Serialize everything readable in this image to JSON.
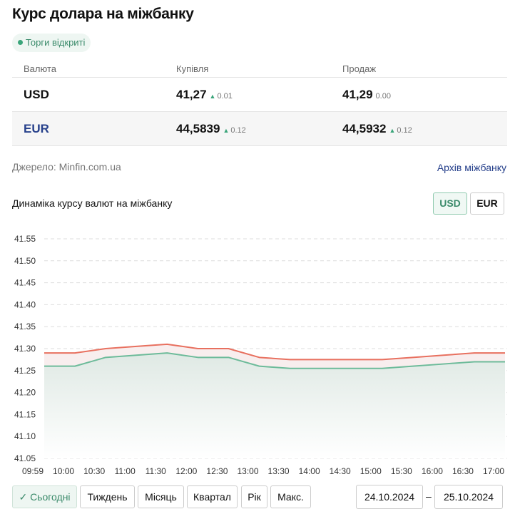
{
  "title": "Курс долара на міжбанку",
  "status_badge": "Торги відкриті",
  "table": {
    "headers": [
      "Валюта",
      "Купівля",
      "Продаж"
    ],
    "rows": [
      {
        "currency": "USD",
        "buy": "41,27",
        "buy_change": "0.01",
        "buy_trend": "up",
        "sell": "41,29",
        "sell_change": "0.00",
        "sell_trend": "none"
      },
      {
        "currency": "EUR",
        "buy": "44,5839",
        "buy_change": "0.12",
        "buy_trend": "up",
        "sell": "44,5932",
        "sell_change": "0.12",
        "sell_trend": "up"
      }
    ]
  },
  "source": "Джерело: Minfin.com.ua",
  "archive_link": "Архів міжбанку",
  "chart_title": "Динаміка курсу валют на міжбанку",
  "currency_toggle": {
    "options": [
      "USD",
      "EUR"
    ],
    "selected": "USD"
  },
  "periods": {
    "options": [
      "Сьогодні",
      "Тиждень",
      "Місяць",
      "Квартал",
      "Рік",
      "Макс."
    ],
    "selected": "Сьогодні",
    "check_icon": "✓"
  },
  "date_from": "24.10.2024",
  "date_sep": "–",
  "date_to": "25.10.2024",
  "colors": {
    "buy": "#6dbb9a",
    "sell": "#e8705f",
    "accent": "#3a8a6a",
    "link": "#26408b"
  },
  "chart_data": {
    "type": "line",
    "categories": [
      "09:59",
      "10:00",
      "10:30",
      "11:00",
      "11:30",
      "12:00",
      "12:30",
      "13:00",
      "13:30",
      "14:00",
      "14:30",
      "15:00",
      "15:30",
      "16:00",
      "16:30",
      "17:00"
    ],
    "yticks": [
      "41.55",
      "41.50",
      "41.45",
      "41.40",
      "41.35",
      "41.30",
      "41.25",
      "41.20",
      "41.15",
      "41.10",
      "41.05"
    ],
    "ylim": [
      41.05,
      41.55
    ],
    "grid": true,
    "series": [
      {
        "key": "sell",
        "values": [
          41.29,
          41.29,
          41.3,
          41.305,
          41.31,
          41.3,
          41.3,
          41.28,
          41.275,
          41.275,
          41.275,
          41.275,
          41.28,
          41.285,
          41.29,
          41.29
        ]
      },
      {
        "key": "buy",
        "values": [
          41.26,
          41.26,
          41.28,
          41.285,
          41.29,
          41.28,
          41.28,
          41.26,
          41.255,
          41.255,
          41.255,
          41.255,
          41.26,
          41.265,
          41.27,
          41.27
        ]
      }
    ]
  }
}
